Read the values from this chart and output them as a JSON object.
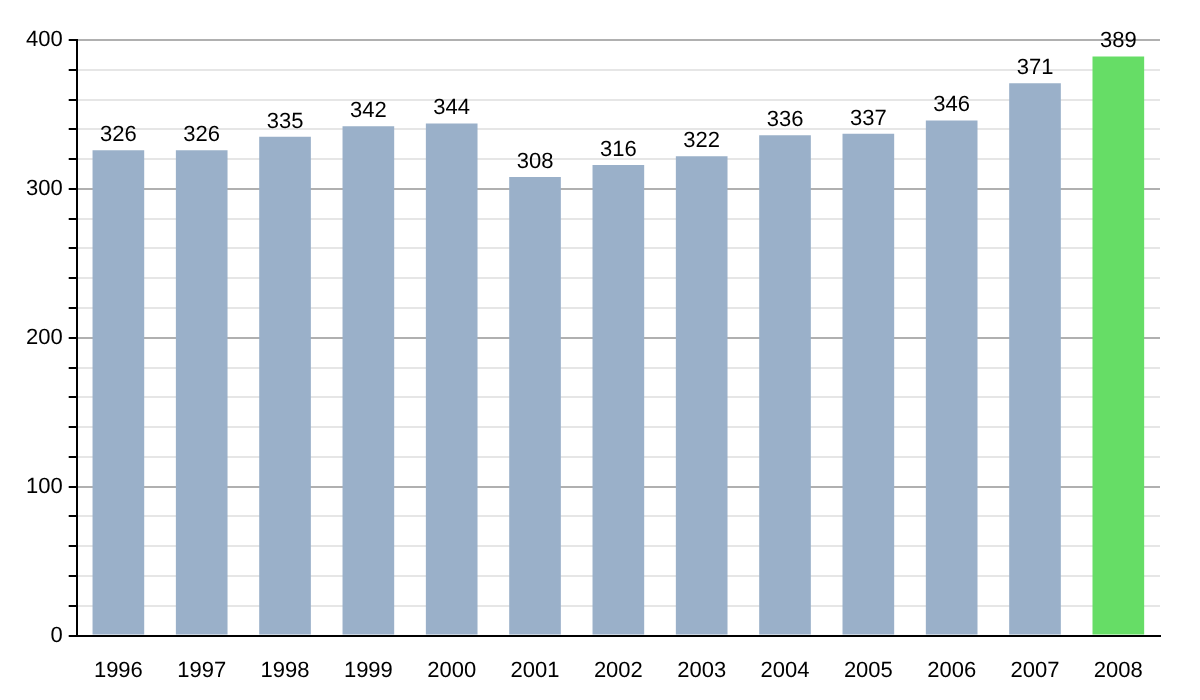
{
  "chart_data": {
    "type": "bar",
    "categories": [
      "1996",
      "1997",
      "1998",
      "1999",
      "2000",
      "2001",
      "2002",
      "2003",
      "2004",
      "2005",
      "2006",
      "2007",
      "2008"
    ],
    "values": [
      326,
      326,
      335,
      342,
      344,
      308,
      316,
      322,
      336,
      337,
      346,
      371,
      389
    ],
    "colors": [
      "#9ab0c9",
      "#9ab0c9",
      "#9ab0c9",
      "#9ab0c9",
      "#9ab0c9",
      "#9ab0c9",
      "#9ab0c9",
      "#9ab0c9",
      "#9ab0c9",
      "#9ab0c9",
      "#9ab0c9",
      "#9ab0c9",
      "#66dd66"
    ],
    "ylim": [
      0,
      400
    ],
    "yticks": [
      0,
      {
        "value": 20,
        "label": null
      },
      {
        "value": 40,
        "label": null
      },
      {
        "value": 60,
        "label": null
      },
      {
        "value": 80,
        "label": null
      },
      100,
      {
        "value": 120,
        "label": null
      },
      {
        "value": 140,
        "label": null
      },
      {
        "value": 160,
        "label": null
      },
      {
        "value": 180,
        "label": null
      },
      200,
      {
        "value": 220,
        "label": null
      },
      {
        "value": 240,
        "label": null
      },
      {
        "value": 260,
        "label": null
      },
      {
        "value": 280,
        "label": null
      },
      300,
      {
        "value": 320,
        "label": null
      },
      {
        "value": 340,
        "label": null
      },
      {
        "value": 360,
        "label": null
      },
      {
        "value": 380,
        "label": null
      },
      400
    ],
    "grid": "y",
    "data_labels": true
  }
}
